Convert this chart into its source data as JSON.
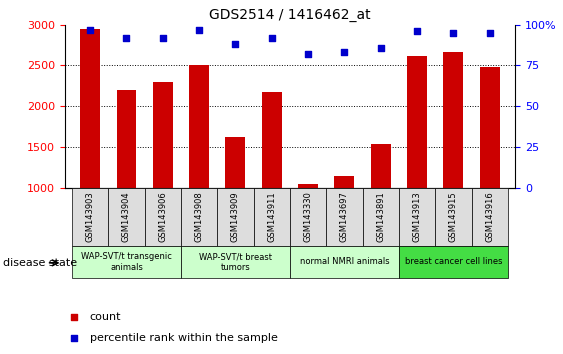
{
  "title": "GDS2514 / 1416462_at",
  "samples": [
    "GSM143903",
    "GSM143904",
    "GSM143906",
    "GSM143908",
    "GSM143909",
    "GSM143911",
    "GSM143330",
    "GSM143697",
    "GSM143891",
    "GSM143913",
    "GSM143915",
    "GSM143916"
  ],
  "counts": [
    2950,
    2200,
    2300,
    2500,
    1620,
    2170,
    1050,
    1140,
    1540,
    2620,
    2660,
    2480
  ],
  "percentile_ranks": [
    97,
    92,
    92,
    97,
    88,
    92,
    82,
    83,
    86,
    96,
    95,
    95
  ],
  "bar_color": "#cc0000",
  "dot_color": "#0000cc",
  "ylim_left": [
    1000,
    3000
  ],
  "yticks_left": [
    1000,
    1500,
    2000,
    2500,
    3000
  ],
  "yticks_right": [
    0,
    25,
    50,
    75,
    100
  ],
  "right_tick_labels": [
    "0",
    "25",
    "50",
    "75",
    "100%"
  ],
  "group_labels": [
    "WAP-SVT/t transgenic\nanimals",
    "WAP-SVT/t breast\ntumors",
    "normal NMRI animals",
    "breast cancer cell lines"
  ],
  "group_starts": [
    0,
    3,
    6,
    9
  ],
  "group_ends": [
    3,
    6,
    9,
    12
  ],
  "group_colors": [
    "#ccffcc",
    "#ccffcc",
    "#ccffcc",
    "#44dd44"
  ],
  "tick_box_color": "#dddddd",
  "disease_state_label": "disease state",
  "legend_count_label": "count",
  "legend_pct_label": "percentile rank within the sample"
}
